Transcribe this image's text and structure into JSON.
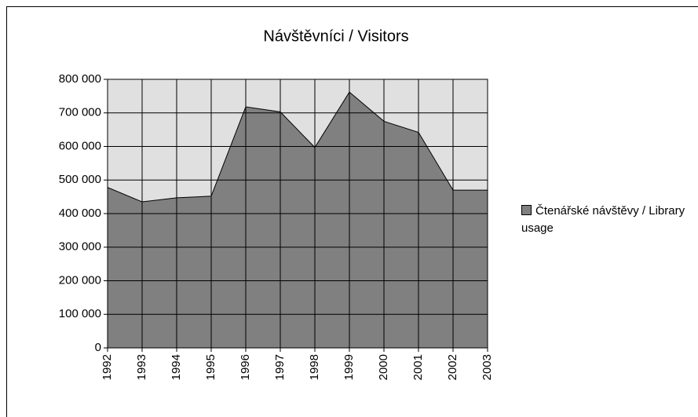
{
  "chart_data": {
    "type": "area",
    "title": "Návštěvníci / Visitors",
    "categories": [
      "1992",
      "1993",
      "1994",
      "1995",
      "1996",
      "1997",
      "1998",
      "1999",
      "2000",
      "2001",
      "2002",
      "2003"
    ],
    "series": [
      {
        "name": "Čtenářské návštěvy / Library usage",
        "color": "#808080",
        "values": [
          478000,
          435000,
          447000,
          452000,
          718000,
          703000,
          597000,
          762000,
          675000,
          642000,
          470000,
          470000
        ]
      }
    ],
    "ylim": [
      0,
      800000
    ],
    "yticks": [
      {
        "value": 0,
        "label": "0"
      },
      {
        "value": 100000,
        "label": "100 000"
      },
      {
        "value": 200000,
        "label": "200 000"
      },
      {
        "value": 300000,
        "label": "300 000"
      },
      {
        "value": 400000,
        "label": "400 000"
      },
      {
        "value": 500000,
        "label": "500 000"
      },
      {
        "value": 600000,
        "label": "600 000"
      },
      {
        "value": 700000,
        "label": "700 000"
      },
      {
        "value": 800000,
        "label": "800 000"
      }
    ],
    "grid": true,
    "legend": "right"
  }
}
